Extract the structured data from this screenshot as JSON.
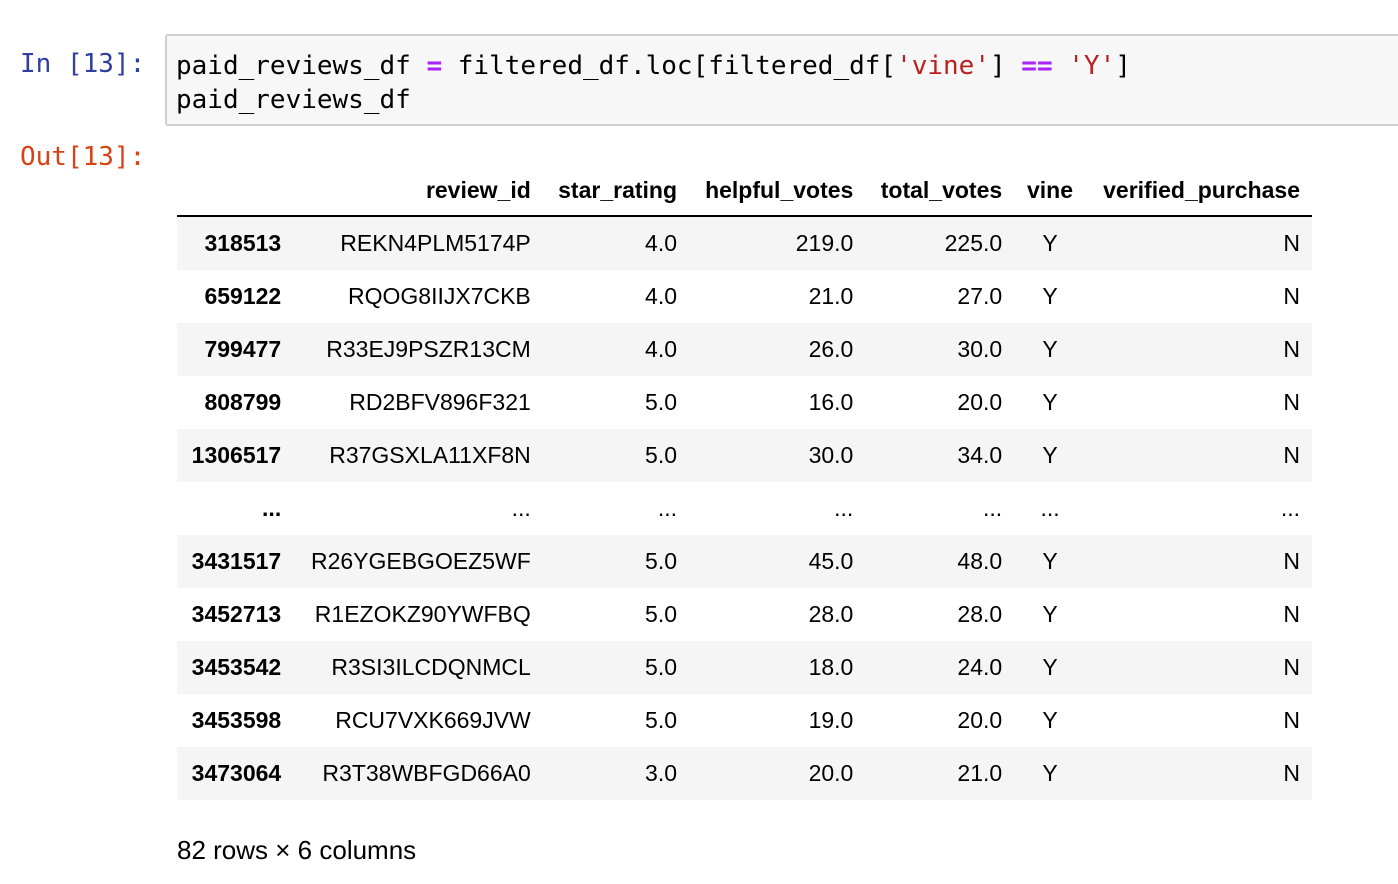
{
  "input_prompt": "In [13]:",
  "output_prompt": "Out[13]:",
  "code": {
    "line1": {
      "a": "paid_reviews_df ",
      "op1": "=",
      "b": " filtered_df.loc[filtered_df[",
      "str1": "'vine'",
      "c": "] ",
      "op2": "==",
      "d": " ",
      "str2": "'Y'",
      "e": "]"
    },
    "line2": "paid_reviews_df"
  },
  "table": {
    "index_header": "",
    "columns": [
      "review_id",
      "star_rating",
      "helpful_votes",
      "total_votes",
      "vine",
      "verified_purchase"
    ],
    "rows": [
      {
        "index": "318513",
        "cells": [
          "REKN4PLM5174P",
          "4.0",
          "219.0",
          "225.0",
          "Y",
          "N"
        ]
      },
      {
        "index": "659122",
        "cells": [
          "RQOG8IIJX7CKB",
          "4.0",
          "21.0",
          "27.0",
          "Y",
          "N"
        ]
      },
      {
        "index": "799477",
        "cells": [
          "R33EJ9PSZR13CM",
          "4.0",
          "26.0",
          "30.0",
          "Y",
          "N"
        ]
      },
      {
        "index": "808799",
        "cells": [
          "RD2BFV896F321",
          "5.0",
          "16.0",
          "20.0",
          "Y",
          "N"
        ]
      },
      {
        "index": "1306517",
        "cells": [
          "R37GSXLA11XF8N",
          "5.0",
          "30.0",
          "34.0",
          "Y",
          "N"
        ]
      },
      {
        "index": "...",
        "cells": [
          "...",
          "...",
          "...",
          "...",
          "...",
          "..."
        ]
      },
      {
        "index": "3431517",
        "cells": [
          "R26YGEBGOEZ5WF",
          "5.0",
          "45.0",
          "48.0",
          "Y",
          "N"
        ]
      },
      {
        "index": "3452713",
        "cells": [
          "R1EZOKZ90YWFBQ",
          "5.0",
          "28.0",
          "28.0",
          "Y",
          "N"
        ]
      },
      {
        "index": "3453542",
        "cells": [
          "R3SI3ILCDQNMCL",
          "5.0",
          "18.0",
          "24.0",
          "Y",
          "N"
        ]
      },
      {
        "index": "3453598",
        "cells": [
          "RCU7VXK669JVW",
          "5.0",
          "19.0",
          "20.0",
          "Y",
          "N"
        ]
      },
      {
        "index": "3473064",
        "cells": [
          "R3T38WBFGD66A0",
          "3.0",
          "20.0",
          "21.0",
          "Y",
          "N"
        ]
      }
    ]
  },
  "shape_note": "82 rows × 6 columns",
  "colors": {
    "input_prompt": "#303f9f",
    "output_prompt": "#d84315",
    "operator": "#aa22ff",
    "string": "#ba2121",
    "cell_background": "#f7f7f7",
    "row_stripe": "#f5f5f5"
  }
}
